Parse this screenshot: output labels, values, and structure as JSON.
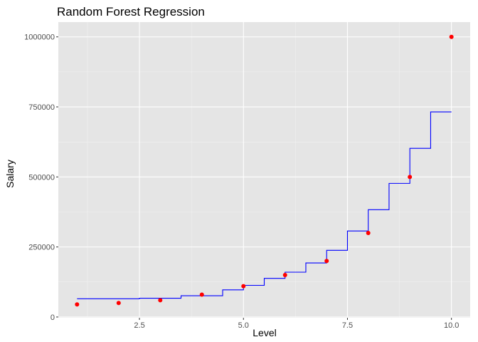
{
  "chart_data": {
    "type": "scatter",
    "title": "Random Forest Regression",
    "xlabel": "Level",
    "ylabel": "Salary",
    "xlim": [
      0.55,
      10.45
    ],
    "ylim": [
      -2750,
      1052750
    ],
    "x_ticks": [
      2.5,
      5.0,
      7.5,
      10.0
    ],
    "x_tick_labels": [
      "2.5",
      "5.0",
      "7.5",
      "10.0"
    ],
    "y_ticks": [
      0,
      250000,
      500000,
      750000,
      1000000
    ],
    "y_tick_labels": [
      "0",
      "250000",
      "500000",
      "750000",
      "1000000"
    ],
    "grid": true,
    "legend": "none",
    "series": [
      {
        "kind": "points",
        "color": "#ff0000",
        "x": [
          1,
          2,
          3,
          4,
          5,
          6,
          7,
          8,
          9,
          10
        ],
        "y": [
          45000,
          50000,
          60000,
          80000,
          110000,
          150000,
          200000,
          300000,
          500000,
          1000000
        ]
      },
      {
        "kind": "step-line",
        "color": "#0000ff",
        "x": [
          1.0,
          2.5,
          2.5,
          3.5,
          3.5,
          4.5,
          4.5,
          5.0,
          5.0,
          5.5,
          5.5,
          6.0,
          6.0,
          6.5,
          6.5,
          7.0,
          7.0,
          7.5,
          7.5,
          8.0,
          8.0,
          8.5,
          8.5,
          9.0,
          9.0,
          9.5,
          9.5,
          10.0
        ],
        "y": [
          65000,
          65000,
          67000,
          67000,
          76000,
          76000,
          97000,
          97000,
          113000,
          113000,
          138000,
          138000,
          160000,
          160000,
          193000,
          193000,
          238000,
          238000,
          307000,
          307000,
          383000,
          383000,
          477000,
          477000,
          602000,
          602000,
          732000,
          732000
        ]
      }
    ]
  },
  "theme": {
    "panel_bg": "#e5e5e5",
    "grid_major": "#ffffff",
    "grid_minor": "#f2f2f2",
    "tick_color": "#333333"
  }
}
